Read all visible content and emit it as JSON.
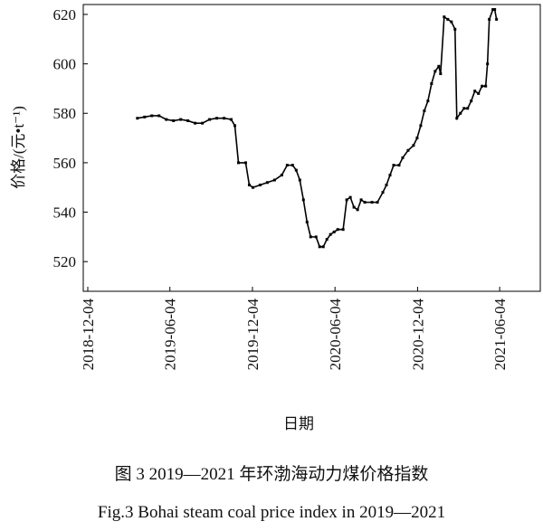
{
  "chart_data": {
    "type": "line",
    "x_label": "日期",
    "y_label": "价格/(元•t⁻¹)",
    "caption_cn": "图 3   2019—2021 年环渤海动力煤价格指数",
    "caption_en": "Fig.3   Bohai steam coal price index in 2019—2021",
    "x": [
      "2019-03-24",
      "2019-04-09",
      "2019-04-25",
      "2019-05-11",
      "2019-05-27",
      "2019-06-12",
      "2019-06-28",
      "2019-07-14",
      "2019-07-30",
      "2019-08-15",
      "2019-08-31",
      "2019-09-16",
      "2019-10-02",
      "2019-10-18",
      "2019-10-26",
      "2019-11-03",
      "2019-11-19",
      "2019-11-27",
      "2019-12-05",
      "2019-12-21",
      "2020-01-06",
      "2020-01-22",
      "2020-02-07",
      "2020-02-19",
      "2020-03-02",
      "2020-03-10",
      "2020-03-18",
      "2020-03-26",
      "2020-04-03",
      "2020-04-11",
      "2020-04-23",
      "2020-05-01",
      "2020-05-09",
      "2020-05-17",
      "2020-05-25",
      "2020-06-02",
      "2020-06-10",
      "2020-06-22",
      "2020-06-30",
      "2020-07-08",
      "2020-07-16",
      "2020-07-24",
      "2020-08-01",
      "2020-08-09",
      "2020-08-25",
      "2020-09-06",
      "2020-09-18",
      "2020-09-26",
      "2020-10-04",
      "2020-10-12",
      "2020-10-24",
      "2020-11-01",
      "2020-11-13",
      "2020-11-25",
      "2020-12-03",
      "2020-12-11",
      "2020-12-19",
      "2020-12-27",
      "2021-01-04",
      "2021-01-12",
      "2021-01-20",
      "2021-01-24",
      "2021-02-01",
      "2021-02-09",
      "2021-02-17",
      "2021-02-25",
      "2021-03-01",
      "2021-03-09",
      "2021-03-17",
      "2021-03-25",
      "2021-04-02",
      "2021-04-10",
      "2021-04-18",
      "2021-04-26",
      "2021-05-04",
      "2021-05-08",
      "2021-05-12",
      "2021-05-20",
      "2021-05-24",
      "2021-05-28"
    ],
    "series": [
      {
        "name": "环渤海动力煤价格指数",
        "color": "#000000",
        "values": [
          578,
          578.5,
          579,
          579,
          577.5,
          577,
          577.5,
          577,
          576,
          576,
          577.5,
          578,
          578,
          577.5,
          575,
          560,
          560,
          551,
          550,
          551,
          552,
          553,
          555,
          559,
          559,
          557,
          553,
          545,
          536,
          530,
          530,
          526,
          526,
          529,
          531,
          532,
          533,
          533,
          545,
          546,
          542,
          541,
          545,
          544,
          544,
          544,
          548,
          551,
          555,
          559,
          559,
          562,
          565,
          567,
          570,
          575,
          581,
          585,
          592,
          597,
          599,
          596,
          619,
          618,
          617,
          614,
          578,
          580,
          582,
          582,
          585,
          589,
          588,
          591,
          591,
          600,
          618,
          622,
          622,
          618
        ]
      }
    ],
    "xlim": [
      "2018-11-24",
      "2021-09-02"
    ],
    "xticks": [
      "2018-12-04",
      "2019-06-04",
      "2019-12-04",
      "2020-06-04",
      "2020-12-04",
      "2021-06-04"
    ],
    "ylim": [
      508,
      624
    ],
    "yticks": [
      520,
      540,
      560,
      580,
      600,
      620
    ]
  }
}
